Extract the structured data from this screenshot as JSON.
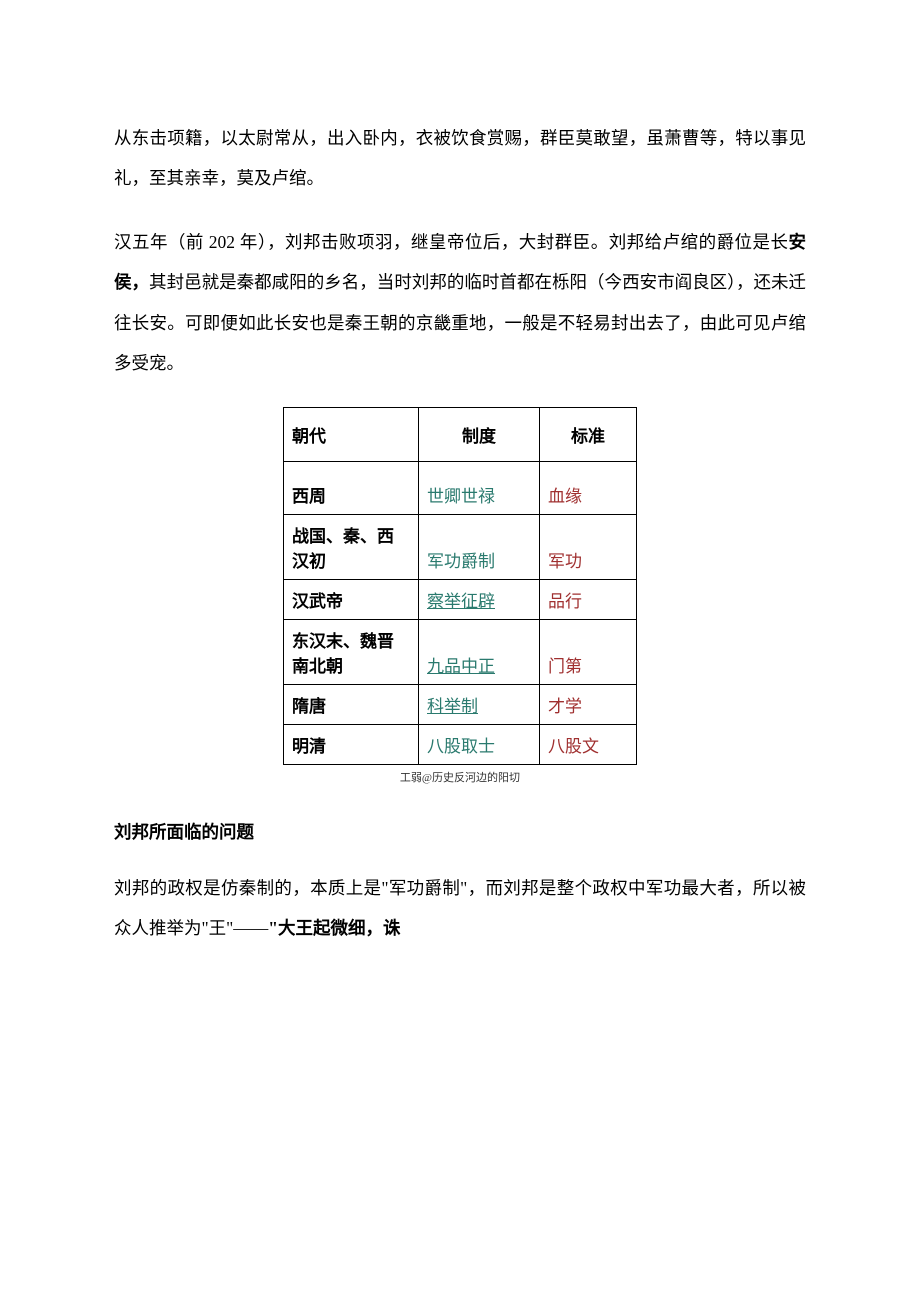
{
  "paragraphs": {
    "p1": "从东击项籍，以太尉常从，出入卧内，衣被饮食赏赐，群臣莫敢望，虽萧曹等，特以事见礼，至其亲幸，莫及卢绾。",
    "p2a": "汉五年（前 202 年），刘邦击败项羽，继皇帝位后，大封群臣。刘邦给卢绾的爵位是长",
    "p2b": "安侯，",
    "p2c": "其封邑就是秦都咸阳的乡名，当时刘邦的临时首都在栎阳（今西安市阎良区），还未迁往长安。可即便如此长安也是秦王朝的京畿重地，一般是不轻易封出去了，由此可见卢绾多受宠。",
    "p3a": "刘邦的政权是仿秦制的，本质上是\"军功爵制\"，而刘邦是整个政权中军功最大者，所以被众人推举为\"王\"——",
    "p3b": "\"大王起微细，诛"
  },
  "heading": "刘邦所面临的问题",
  "table": {
    "headers": [
      "朝代",
      "制度",
      "标准"
    ],
    "rows": [
      {
        "dynasty": "西周",
        "system": "世卿世禄",
        "standard": "血缘",
        "link": false,
        "tall": true
      },
      {
        "dynasty": "战国、秦、西汉初",
        "system": "军功爵制",
        "standard": "军功",
        "link": false,
        "tall": false
      },
      {
        "dynasty": "汉武帝",
        "system": "察举征辟",
        "standard": "品行",
        "link": true,
        "tall": false
      },
      {
        "dynasty": "东汉末、魏晋南北朝",
        "system": "九品中正",
        "standard": "门第",
        "link": true,
        "tall": false
      },
      {
        "dynasty": "隋唐",
        "system": "科举制",
        "standard": "才学",
        "link": true,
        "tall": false
      },
      {
        "dynasty": "明清",
        "system": "八股取士",
        "standard": "八股文",
        "link": false,
        "tall": false
      }
    ],
    "caption": "工弱@历史反河边的阳切",
    "colors": {
      "dynasty": "#000000",
      "system": "#2a7a6e",
      "standard": "#a03030",
      "border": "#000000"
    }
  }
}
